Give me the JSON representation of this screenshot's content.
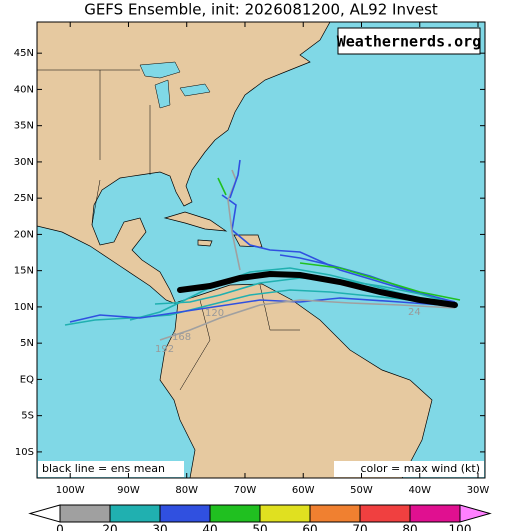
{
  "title": "GEFS Ensemble, init: 2026081200, AL92 Invest",
  "watermark": "Weathernerds.org",
  "legend_left": "black line = ens mean",
  "legend_right": "color = max wind (kt)",
  "map": {
    "xlim": [
      -105.7,
      -28.8
    ],
    "ylim": [
      -13.6,
      49.3
    ],
    "lat_ticks": [
      {
        "value": 45,
        "label": "45N"
      },
      {
        "value": 40,
        "label": "40N"
      },
      {
        "value": 35,
        "label": "35N"
      },
      {
        "value": 30,
        "label": "30N"
      },
      {
        "value": 25,
        "label": "25N"
      },
      {
        "value": 20,
        "label": "20N"
      },
      {
        "value": 15,
        "label": "15N"
      },
      {
        "value": 10,
        "label": "10N"
      },
      {
        "value": 5,
        "label": "5N"
      },
      {
        "value": 0,
        "label": "EQ"
      },
      {
        "value": -5,
        "label": "5S"
      },
      {
        "value": -10,
        "label": "10S"
      }
    ],
    "lon_ticks": [
      {
        "value": -100,
        "label": "100W"
      },
      {
        "value": -90,
        "label": "90W"
      },
      {
        "value": -80,
        "label": "80W"
      },
      {
        "value": -70,
        "label": "70W"
      },
      {
        "value": -60,
        "label": "60W"
      },
      {
        "value": -50,
        "label": "50W"
      },
      {
        "value": -40,
        "label": "40W"
      },
      {
        "value": -30,
        "label": "30W"
      }
    ]
  },
  "hour_labels": [
    "192",
    "168",
    "120",
    "24"
  ],
  "colorbar": {
    "ticks": [
      0,
      20,
      30,
      40,
      50,
      60,
      70,
      80,
      100
    ],
    "colors": [
      "#a0a0a0",
      "#20b0b0",
      "#3050e0",
      "#20c020",
      "#e0e020",
      "#f08030",
      "#f04040",
      "#e01090"
    ]
  }
}
